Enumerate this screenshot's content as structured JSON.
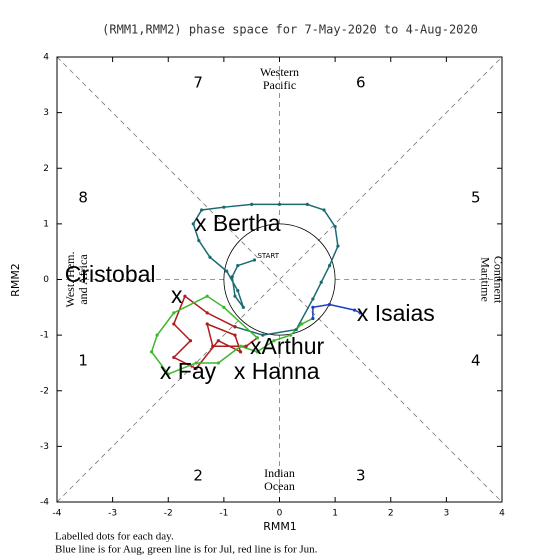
{
  "chart_data": {
    "type": "line",
    "title": "(RMM1,RMM2) phase space for  7-May-2020 to  4-Aug-2020",
    "xlabel": "RMM1",
    "ylabel": "RMM2",
    "xlim": [
      -4,
      4
    ],
    "ylim": [
      -4,
      4
    ],
    "xticks": [
      -4,
      -3,
      -2,
      -1,
      0,
      1,
      2,
      3,
      4
    ],
    "yticks": [
      -4,
      -3,
      -2,
      -1,
      0,
      1,
      2,
      3,
      4
    ],
    "phases": [
      "1",
      "2",
      "3",
      "4",
      "5",
      "6",
      "7",
      "8"
    ],
    "regions": {
      "top": [
        "Western",
        "Pacific"
      ],
      "bottom": [
        "Indian",
        "Ocean"
      ],
      "right": [
        "Maritime",
        "Continent"
      ],
      "left": [
        "West. Hem.",
        "and Africa"
      ]
    },
    "start_label": "START",
    "series": [
      {
        "color": "#1b6a72",
        "x": [
          -0.45,
          -0.75,
          -0.85,
          -0.8,
          -0.65,
          -0.75,
          -0.95,
          -1.25,
          -1.45,
          -1.55,
          -1.4,
          -1.0,
          -0.5,
          0.0,
          0.5,
          0.8,
          1.0,
          1.05,
          0.9,
          0.75,
          0.6,
          0.3,
          -0.3,
          -0.8
        ],
        "y": [
          0.35,
          0.25,
          0.05,
          -0.3,
          -0.5,
          -0.2,
          0.15,
          0.4,
          0.7,
          1.0,
          1.25,
          1.3,
          1.35,
          1.35,
          1.35,
          1.25,
          0.95,
          0.6,
          0.25,
          -0.05,
          -0.35,
          -0.9,
          -1.0,
          -0.85
        ]
      },
      {
        "color": "#b01c1c",
        "x": [
          -0.8,
          -1.3,
          -1.7,
          -1.9,
          -1.6,
          -1.9,
          -1.5,
          -1.1,
          -0.7,
          -0.8,
          -1.3,
          -1.2,
          -0.6,
          -0.4
        ],
        "y": [
          -0.85,
          -0.6,
          -0.3,
          -0.8,
          -1.1,
          -1.4,
          -1.6,
          -1.1,
          -1.3,
          -1.0,
          -0.8,
          -1.2,
          -1.2,
          -1.05
        ]
      },
      {
        "color": "#3cb82a",
        "x": [
          -0.4,
          -1.0,
          -1.3,
          -1.9,
          -2.2,
          -2.3,
          -2.0,
          -1.5,
          -1.1,
          -0.7,
          -0.4,
          -0.1,
          0.2,
          0.4,
          0.6
        ],
        "y": [
          -1.05,
          -0.5,
          -0.3,
          -0.6,
          -1.0,
          -1.3,
          -1.7,
          -1.5,
          -1.5,
          -1.2,
          -1.3,
          -1.1,
          -1.0,
          -0.8,
          -0.7
        ]
      },
      {
        "color": "#1b3fc4",
        "x": [
          0.6,
          0.6,
          0.9,
          1.35,
          1.45
        ],
        "y": [
          -0.7,
          -0.5,
          -0.45,
          -0.55,
          -0.6
        ]
      }
    ],
    "annotations": [
      {
        "text": "x Bertha",
        "x": -1.52,
        "y": 0.98
      },
      {
        "text": "Cristobal",
        "x": -3.86,
        "y": 0.06
      },
      {
        "text": "x",
        "x": -1.95,
        "y": -0.31
      },
      {
        "text": "x Isaias",
        "x": 1.39,
        "y": -0.64
      },
      {
        "text": "xArthur",
        "x": -0.53,
        "y": -1.23
      },
      {
        "text": "x Fay",
        "x": -2.15,
        "y": -1.68
      },
      {
        "text": "x Hanna",
        "x": -0.82,
        "y": -1.68
      }
    ],
    "notes": [
      "Labelled dots for each day.",
      "Blue line is for Aug, green line is for Jul, red line is for Jun."
    ]
  }
}
